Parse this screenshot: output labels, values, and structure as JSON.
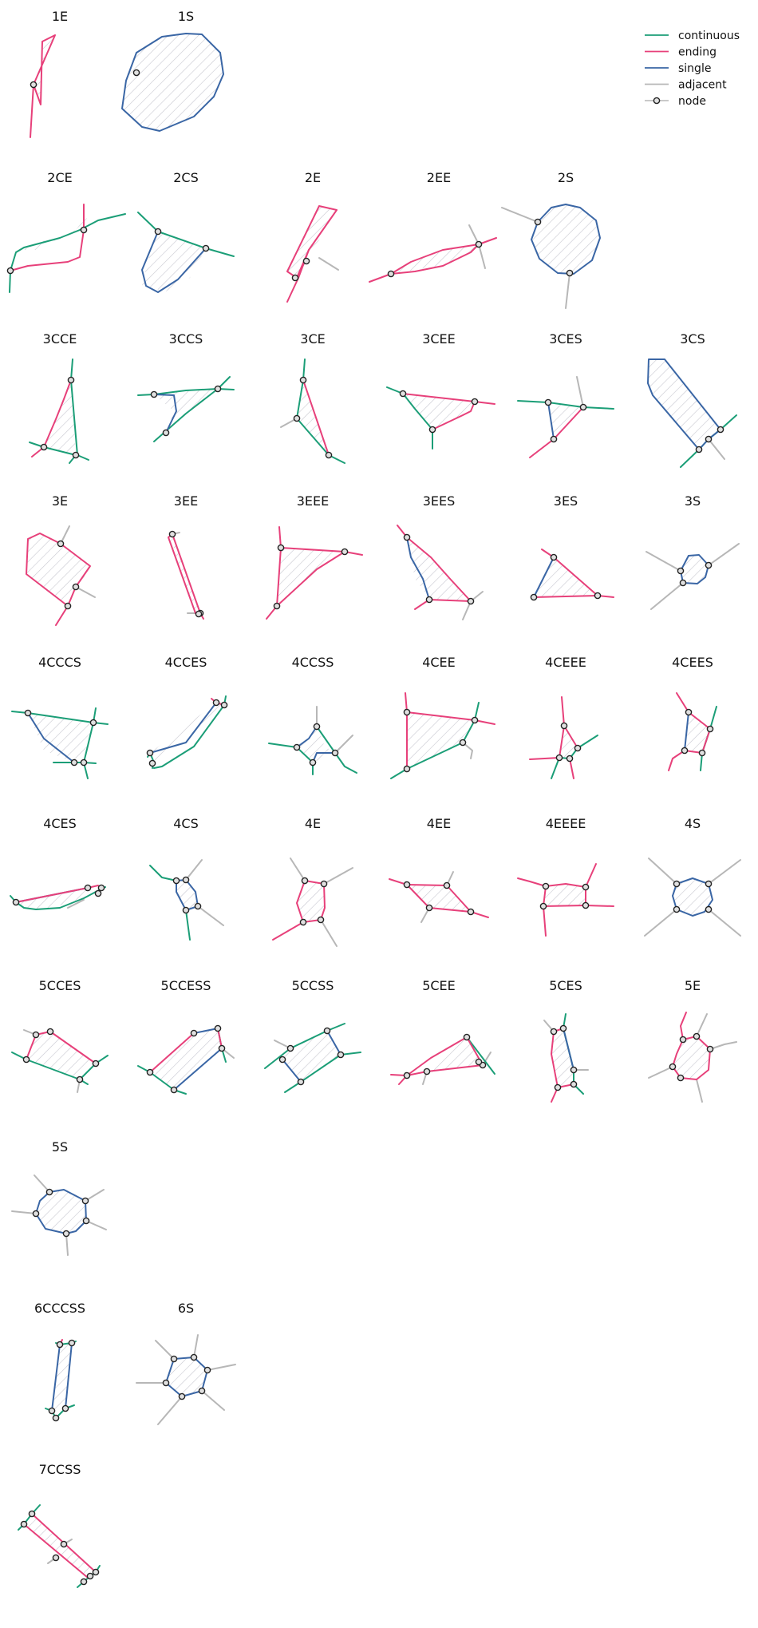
{
  "legend": [
    {
      "key": "continuous",
      "label": "continuous",
      "color": "#1b9e77"
    },
    {
      "key": "ending",
      "label": "ending",
      "color": "#e7407a"
    },
    {
      "key": "single",
      "label": "single",
      "color": "#3a66a5"
    },
    {
      "key": "adjacent",
      "label": "adjacent",
      "color": "#b7b7b7"
    },
    {
      "key": "node",
      "label": "node",
      "color": "#222222"
    }
  ],
  "colors": {
    "continuous": "#1b9e77",
    "ending": "#e7407a",
    "single": "#3a66a5",
    "adjacent": "#b7b7b7",
    "hatch": "#c8c8d0",
    "node_fill": "#e0e0e0",
    "node_stroke": "#222222"
  },
  "panels": [
    {
      "label": "1E"
    },
    {
      "label": "1S"
    },
    {
      "label": "2CE"
    },
    {
      "label": "2CS"
    },
    {
      "label": "2E"
    },
    {
      "label": "2EE"
    },
    {
      "label": "2S"
    },
    {
      "label": "3CCE"
    },
    {
      "label": "3CCS"
    },
    {
      "label": "3CE"
    },
    {
      "label": "3CEE"
    },
    {
      "label": "3CES"
    },
    {
      "label": "3CS"
    },
    {
      "label": "3E"
    },
    {
      "label": "3EE"
    },
    {
      "label": "3EEE"
    },
    {
      "label": "3EES"
    },
    {
      "label": "3ES"
    },
    {
      "label": "3S"
    },
    {
      "label": "4CCCS"
    },
    {
      "label": "4CCES"
    },
    {
      "label": "4CCSS"
    },
    {
      "label": "4CEE"
    },
    {
      "label": "4CEEE"
    },
    {
      "label": "4CEES"
    },
    {
      "label": "4CES"
    },
    {
      "label": "4CS"
    },
    {
      "label": "4E"
    },
    {
      "label": "4EE"
    },
    {
      "label": "4EEEE"
    },
    {
      "label": "4S"
    },
    {
      "label": "5CCES"
    },
    {
      "label": "5CCESS"
    },
    {
      "label": "5CCSS"
    },
    {
      "label": "5CEE"
    },
    {
      "label": "5CES"
    },
    {
      "label": "5E"
    },
    {
      "label": "5S"
    },
    {
      "label": "6CCCSS"
    },
    {
      "label": "6S"
    },
    {
      "label": "7CCSS"
    }
  ]
}
